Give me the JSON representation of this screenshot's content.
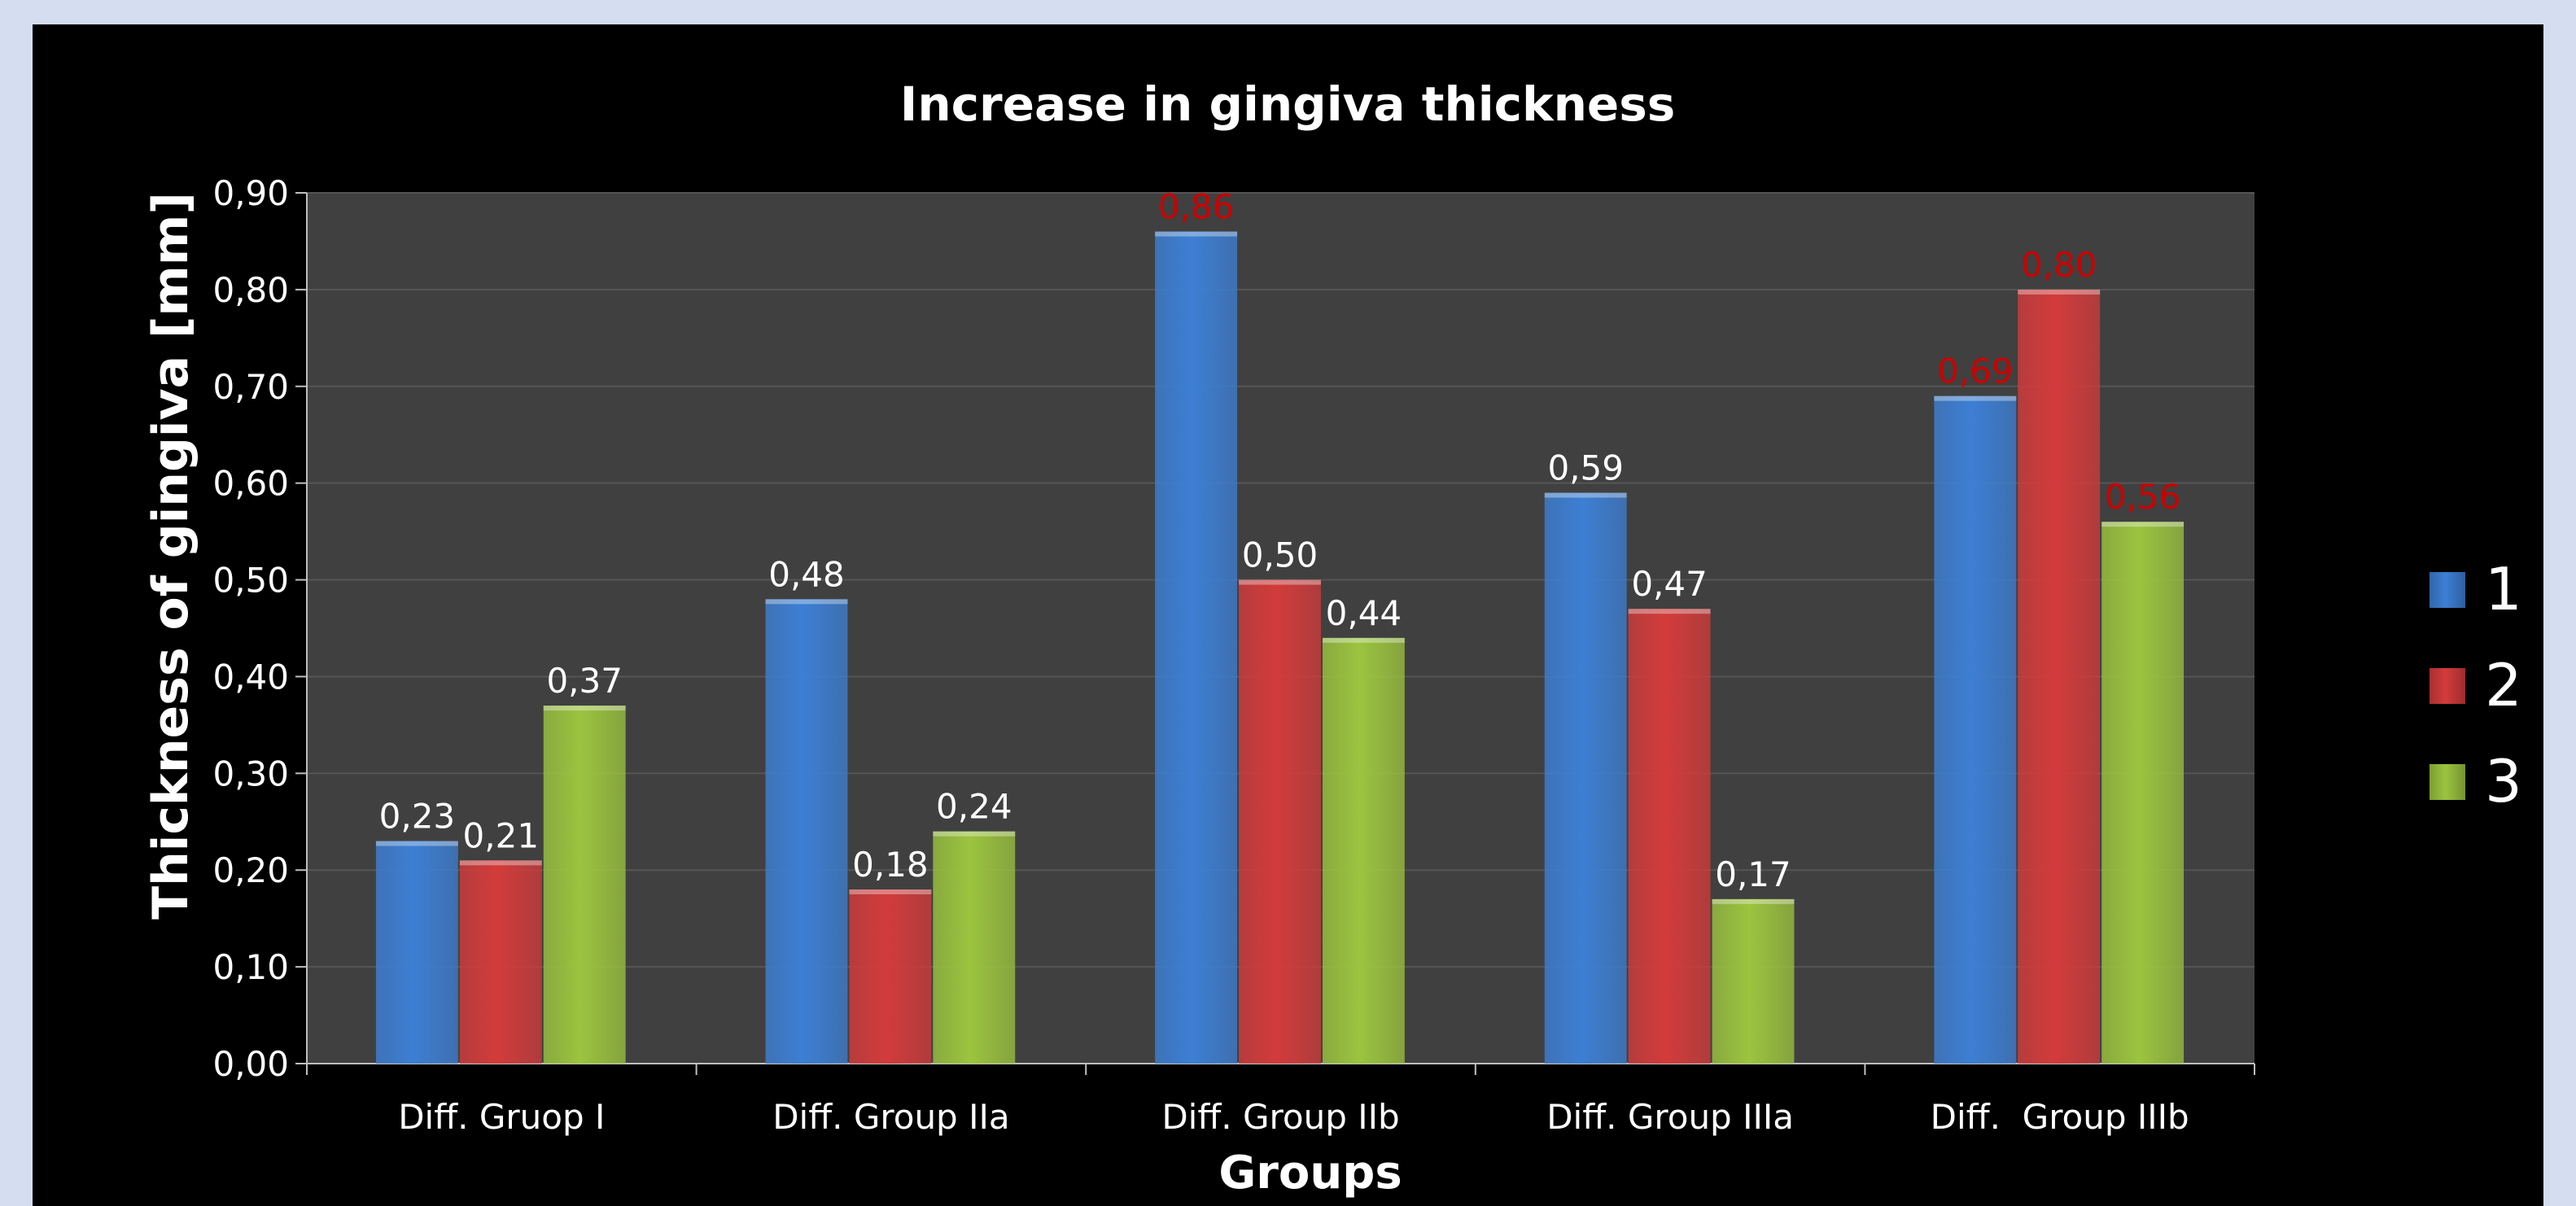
{
  "chart_data": {
    "type": "bar",
    "title": "Increase in gingiva thickness",
    "xlabel": "Groups",
    "ylabel": "Thickness of gingiva [mm]",
    "categories": [
      "Diff. Gruop I",
      "Diff. Group IIa",
      "Diff. Group IIb",
      "Diff. Group IIIa",
      "Diff.  Group IIIb"
    ],
    "series": [
      {
        "name": "1",
        "color": "#3d7fd4",
        "values": [
          0.23,
          0.48,
          0.86,
          0.59,
          0.69
        ],
        "labels": [
          "0,23",
          "0,48",
          "0,86",
          "0,59",
          "0,69"
        ]
      },
      {
        "name": "2",
        "color": "#d33b3b",
        "values": [
          0.21,
          0.18,
          0.5,
          0.47,
          0.8
        ],
        "labels": [
          "0,21",
          "0,18",
          "0,50",
          "0,47",
          "0,80"
        ]
      },
      {
        "name": "3",
        "color": "#9cc43f",
        "values": [
          0.37,
          0.24,
          0.44,
          0.17,
          0.56
        ],
        "labels": [
          "0,37",
          "0,24",
          "0,44",
          "0,17",
          "0,56"
        ]
      }
    ],
    "highlighted_labels": [
      [
        2,
        0
      ],
      [
        4,
        0
      ],
      [
        4,
        1
      ],
      [
        4,
        2
      ]
    ],
    "highlight_color": "#cc0000",
    "yticks": [
      "0,00",
      "0,10",
      "0,20",
      "0,30",
      "0,40",
      "0,50",
      "0,60",
      "0,70",
      "0,80",
      "0,90"
    ],
    "ylim": [
      0,
      0.9
    ],
    "grid": true,
    "legend_position": "right",
    "plot_background": "#404040"
  }
}
